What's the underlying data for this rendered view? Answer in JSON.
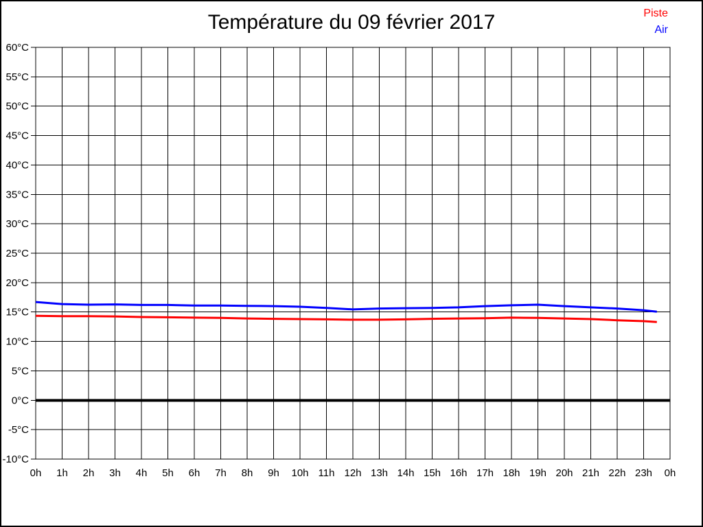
{
  "page": {
    "background": "#ffffff",
    "border_color": "#000000"
  },
  "header": {
    "title": "Température du 09 février 2017"
  },
  "legend": {
    "position": "top-right",
    "items": [
      {
        "label": "Piste",
        "color": "#ff0000"
      },
      {
        "label": "Air",
        "color": "#0000ff"
      }
    ]
  },
  "chart_data": {
    "type": "line",
    "title": "Température du 09 février 2017",
    "xlabel": "",
    "ylabel": "",
    "grid": true,
    "gridline_color": "#000000",
    "plot_background": "#ffffff",
    "ylim": [
      -10,
      60
    ],
    "ytick_step": 5,
    "ytick_labels": [
      "60°C",
      "55°C",
      "50°C",
      "45°C",
      "40°C",
      "35°C",
      "30°C",
      "25°C",
      "20°C",
      "15°C",
      "10°C",
      "5°C",
      "0°C",
      "-5°C",
      "-10°C"
    ],
    "xlim": [
      0,
      24
    ],
    "xtick_labels": [
      "0h",
      "1h",
      "2h",
      "3h",
      "4h",
      "5h",
      "6h",
      "7h",
      "8h",
      "9h",
      "10h",
      "11h",
      "12h",
      "13h",
      "14h",
      "15h",
      "16h",
      "17h",
      "18h",
      "19h",
      "20h",
      "21h",
      "22h",
      "23h",
      "0h"
    ],
    "x_hours": [
      0,
      1,
      2,
      3,
      4,
      5,
      6,
      7,
      8,
      9,
      10,
      11,
      12,
      13,
      14,
      15,
      16,
      17,
      18,
      19,
      20,
      21,
      22,
      23,
      23.5
    ],
    "series": [
      {
        "name": "Piste",
        "color": "#ff0000",
        "line_width": 3,
        "values": [
          14.35,
          14.3,
          14.3,
          14.25,
          14.15,
          14.1,
          14.05,
          14.0,
          13.9,
          13.85,
          13.8,
          13.75,
          13.7,
          13.7,
          13.75,
          13.85,
          13.9,
          13.95,
          14.05,
          14.0,
          13.9,
          13.8,
          13.6,
          13.45,
          13.3
        ]
      },
      {
        "name": "Air",
        "color": "#0000ff",
        "line_width": 3,
        "values": [
          16.7,
          16.35,
          16.25,
          16.3,
          16.2,
          16.2,
          16.1,
          16.1,
          16.05,
          16.0,
          15.9,
          15.7,
          15.45,
          15.6,
          15.65,
          15.7,
          15.8,
          16.0,
          16.15,
          16.25,
          16.0,
          15.8,
          15.6,
          15.3,
          15.05
        ]
      }
    ],
    "zero_line": {
      "value": 0,
      "color": "#000000",
      "width": 4
    },
    "legend_position": "top-right"
  }
}
